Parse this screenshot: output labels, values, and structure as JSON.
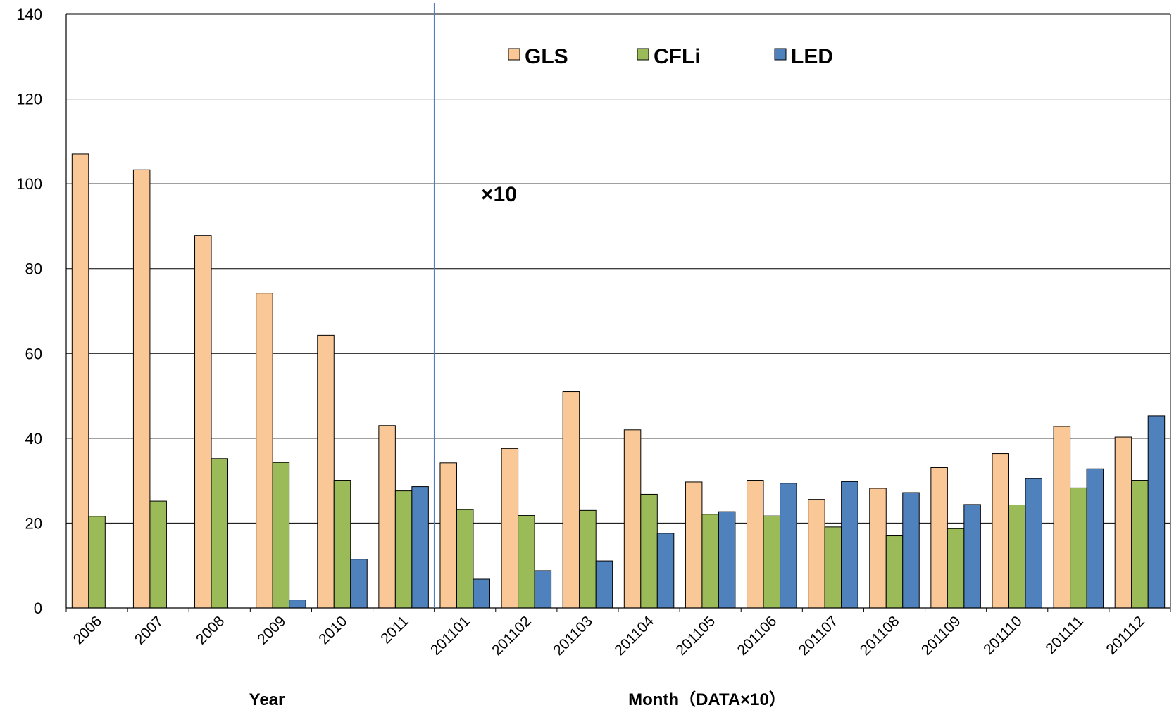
{
  "chart_data": {
    "type": "bar",
    "categories": [
      "2006",
      "2007",
      "2008",
      "2009",
      "2010",
      "2011",
      "201101",
      "201102",
      "201103",
      "201104",
      "201105",
      "201106",
      "201107",
      "201108",
      "201109",
      "201110",
      "201111",
      "201112"
    ],
    "series": [
      {
        "name": "GLS",
        "color": "#fac896",
        "values": [
          107,
          103.3,
          87.8,
          74.2,
          64.3,
          43,
          34.2,
          37.6,
          51,
          42,
          29.7,
          30.1,
          25.6,
          28.2,
          33.1,
          36.4,
          42.8,
          40.3
        ]
      },
      {
        "name": "CFLi",
        "color": "#9bbb59",
        "values": [
          21.6,
          25.2,
          35.2,
          34.3,
          30.1,
          27.6,
          23.2,
          21.8,
          23,
          26.8,
          22.1,
          21.7,
          19.1,
          17,
          18.7,
          24.3,
          28.3,
          30.1
        ]
      },
      {
        "name": "LED",
        "color": "#4f81bd",
        "values": [
          0,
          0,
          0,
          1.9,
          11.5,
          28.6,
          6.8,
          8.8,
          11.1,
          17.6,
          22.7,
          29.4,
          29.8,
          27.2,
          24.4,
          30.5,
          32.8,
          45.3
        ]
      }
    ],
    "ylim": [
      0,
      140
    ],
    "yticks": [
      0,
      20,
      40,
      60,
      80,
      100,
      120,
      140
    ],
    "grid": true,
    "legend": "top-center",
    "divider_after_category": "2011",
    "section_labels": [
      "Year",
      "Month（DATA×10）"
    ],
    "annotation": "×10"
  }
}
